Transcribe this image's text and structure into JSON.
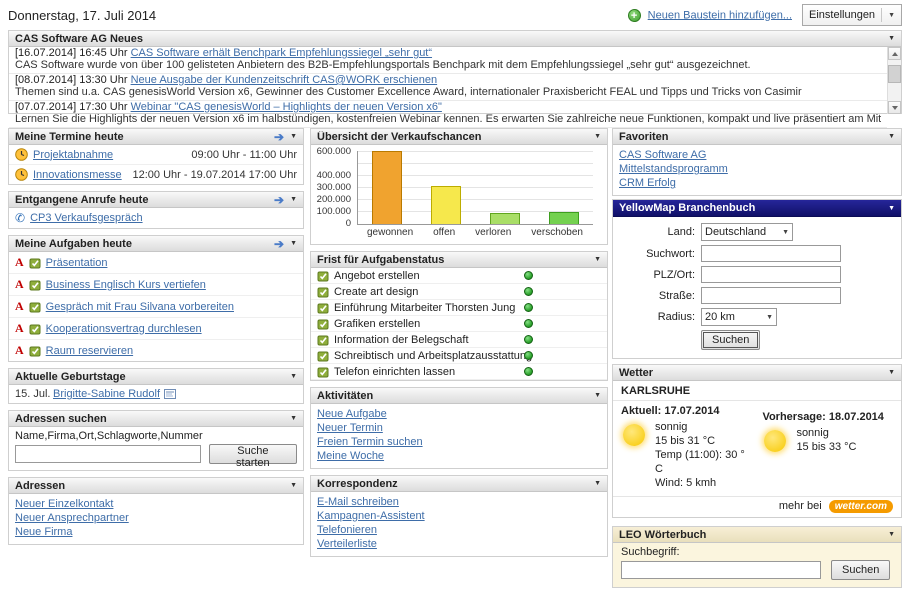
{
  "topbar": {
    "date": "Donnerstag, 17. Juli 2014",
    "add_widget_label": "Neuen Baustein hinzufügen...",
    "settings_label": "Einstellungen"
  },
  "news": {
    "title": "CAS Software AG Neues",
    "items": [
      {
        "date": "[16.07.2014] 16:45 Uhr",
        "link": "CAS Software erhält Benchpark Empfehlungssiegel „sehr gut“",
        "text": "CAS Software wurde von über 100 gelisteten Anbietern des B2B-Empfehlungsportals Benchpark mit dem Empfehlungssiegel „sehr gut“ ausgezeichnet."
      },
      {
        "date": "[08.07.2014] 13:30 Uhr",
        "link": "Neue Ausgabe der Kundenzeitschrift CAS@WORK erschienen",
        "text": "Themen sind u.a. CAS genesisWorld Version x6, Gewinner des Customer Excellence Award, internationaler Praxisbericht FEAL und Tipps und Tricks von Casimir"
      },
      {
        "date": "[07.07.2014] 17:30 Uhr",
        "link": "Webinar \"CAS genesisWorld – Highlights der neuen Version x6\"",
        "text": "Lernen Sie die Highlights der neuen Version x6 im halbstündigen, kostenfreien Webinar kennen. Es erwarten Sie zahlreiche neue Funktionen, kompakt und live präsentiert am Mittwoch, 9. Juli um 11 Uhr."
      }
    ]
  },
  "appointments": {
    "title": "Meine Termine heute",
    "items": [
      {
        "label": "Projektabnahme",
        "time": "09:00 Uhr - 11:00 Uhr"
      },
      {
        "label": "Innovationsmesse",
        "time": "12:00 Uhr - 19.07.2014 17:00 Uhr"
      }
    ]
  },
  "missed_calls": {
    "title": "Entgangene Anrufe heute",
    "items": [
      {
        "label": "CP3 Verkaufsgespräch"
      }
    ]
  },
  "tasks": {
    "title": "Meine Aufgaben heute",
    "priority": "A",
    "items": [
      "Präsentation",
      "Business Englisch Kurs vertiefen",
      "Gespräch mit Frau Silvana vorbereiten",
      "Kooperationsvertrag durchlesen",
      "Raum reservieren"
    ]
  },
  "birthdays": {
    "title": "Aktuelle Geburtstage",
    "items": [
      {
        "date": "15. Jul.",
        "name": "Brigitte-Sabine Rudolf"
      }
    ]
  },
  "address_search": {
    "title": "Adressen suchen",
    "label": "Name,Firma,Ort,Schlagworte,Nummer",
    "button": "Suche starten"
  },
  "addresses": {
    "title": "Adressen",
    "links": [
      "Neuer Einzelkontakt",
      "Neuer Ansprechpartner",
      "Neue Firma"
    ]
  },
  "chart_data": {
    "type": "bar",
    "title": "Übersicht der Verkaufschancen",
    "categories": [
      "gewonnen",
      "offen",
      "verloren",
      "verschoben"
    ],
    "values": [
      615000,
      320000,
      90000,
      100000
    ],
    "xlabel": "",
    "ylabel": "",
    "ylim": [
      0,
      620000
    ],
    "ytick_labels": [
      "600.000",
      "400.000",
      "300.000",
      "200.000",
      "100.000",
      "0"
    ],
    "ytick_values": [
      600000,
      400000,
      300000,
      200000,
      100000,
      0
    ],
    "grid": true,
    "legend": false,
    "bar_colors": [
      "#F0A32F",
      "#F6E84C",
      "#A9DE67",
      "#74D150"
    ],
    "bar_borders": [
      "#B97A00",
      "#BCAC00",
      "#61A61F",
      "#3E9E1F"
    ]
  },
  "task_status": {
    "title": "Frist für Aufgabenstatus",
    "items": [
      "Angebot erstellen",
      "Create art design",
      "Einführung Mitarbeiter Thorsten Jung",
      "Grafiken erstellen",
      "Information der Belegschaft",
      "Schreibtisch und Arbeitsplatzausstattung",
      "Telefon einrichten lassen"
    ]
  },
  "activities": {
    "title": "Aktivitäten",
    "links": [
      "Neue Aufgabe",
      "Neuer Termin",
      "Freien Termin suchen",
      "Meine Woche"
    ]
  },
  "correspondence": {
    "title": "Korrespondenz",
    "links": [
      "E-Mail schreiben",
      "Kampagnen-Assistent",
      "Telefonieren",
      "Verteilerliste"
    ]
  },
  "favorites": {
    "title": "Favoriten",
    "links": [
      "CAS Software AG",
      "Mittelstandsprogramm",
      "CRM Erfolg"
    ]
  },
  "yellowmap": {
    "title": "YellowMap Branchenbuch",
    "land_label": "Land:",
    "land_value": "Deutschland",
    "suchwort_label": "Suchwort:",
    "plz_label": "PLZ/Ort:",
    "strasse_label": "Straße:",
    "radius_label": "Radius:",
    "radius_value": "20 km",
    "button": "Suchen"
  },
  "weather": {
    "title": "Wetter",
    "city": "KARLSRUHE",
    "current": {
      "heading": "Aktuell: 17.07.2014",
      "condition": "sonnig",
      "range": "15 bis 31 °C",
      "temp": "Temp (11:00): 30 ° C",
      "wind": "Wind: 5 kmh"
    },
    "forecast": {
      "heading": "Vorhersage: 18.07.2014",
      "condition": "sonnig",
      "range": "15 bis 33 °C"
    },
    "more_label": "mehr bei",
    "brand": "wetter.com"
  },
  "leo": {
    "title": "LEO Wörterbuch",
    "label": "Suchbegriff:",
    "button": "Suchen"
  },
  "colors": {
    "link": "#3E6DA8",
    "yellowmap_header": "#18187C",
    "status_green": "#2DA32D",
    "priority_red": "#C00000",
    "leo_background": "#FBF5DE",
    "wetter_badge": "#F59B00"
  }
}
